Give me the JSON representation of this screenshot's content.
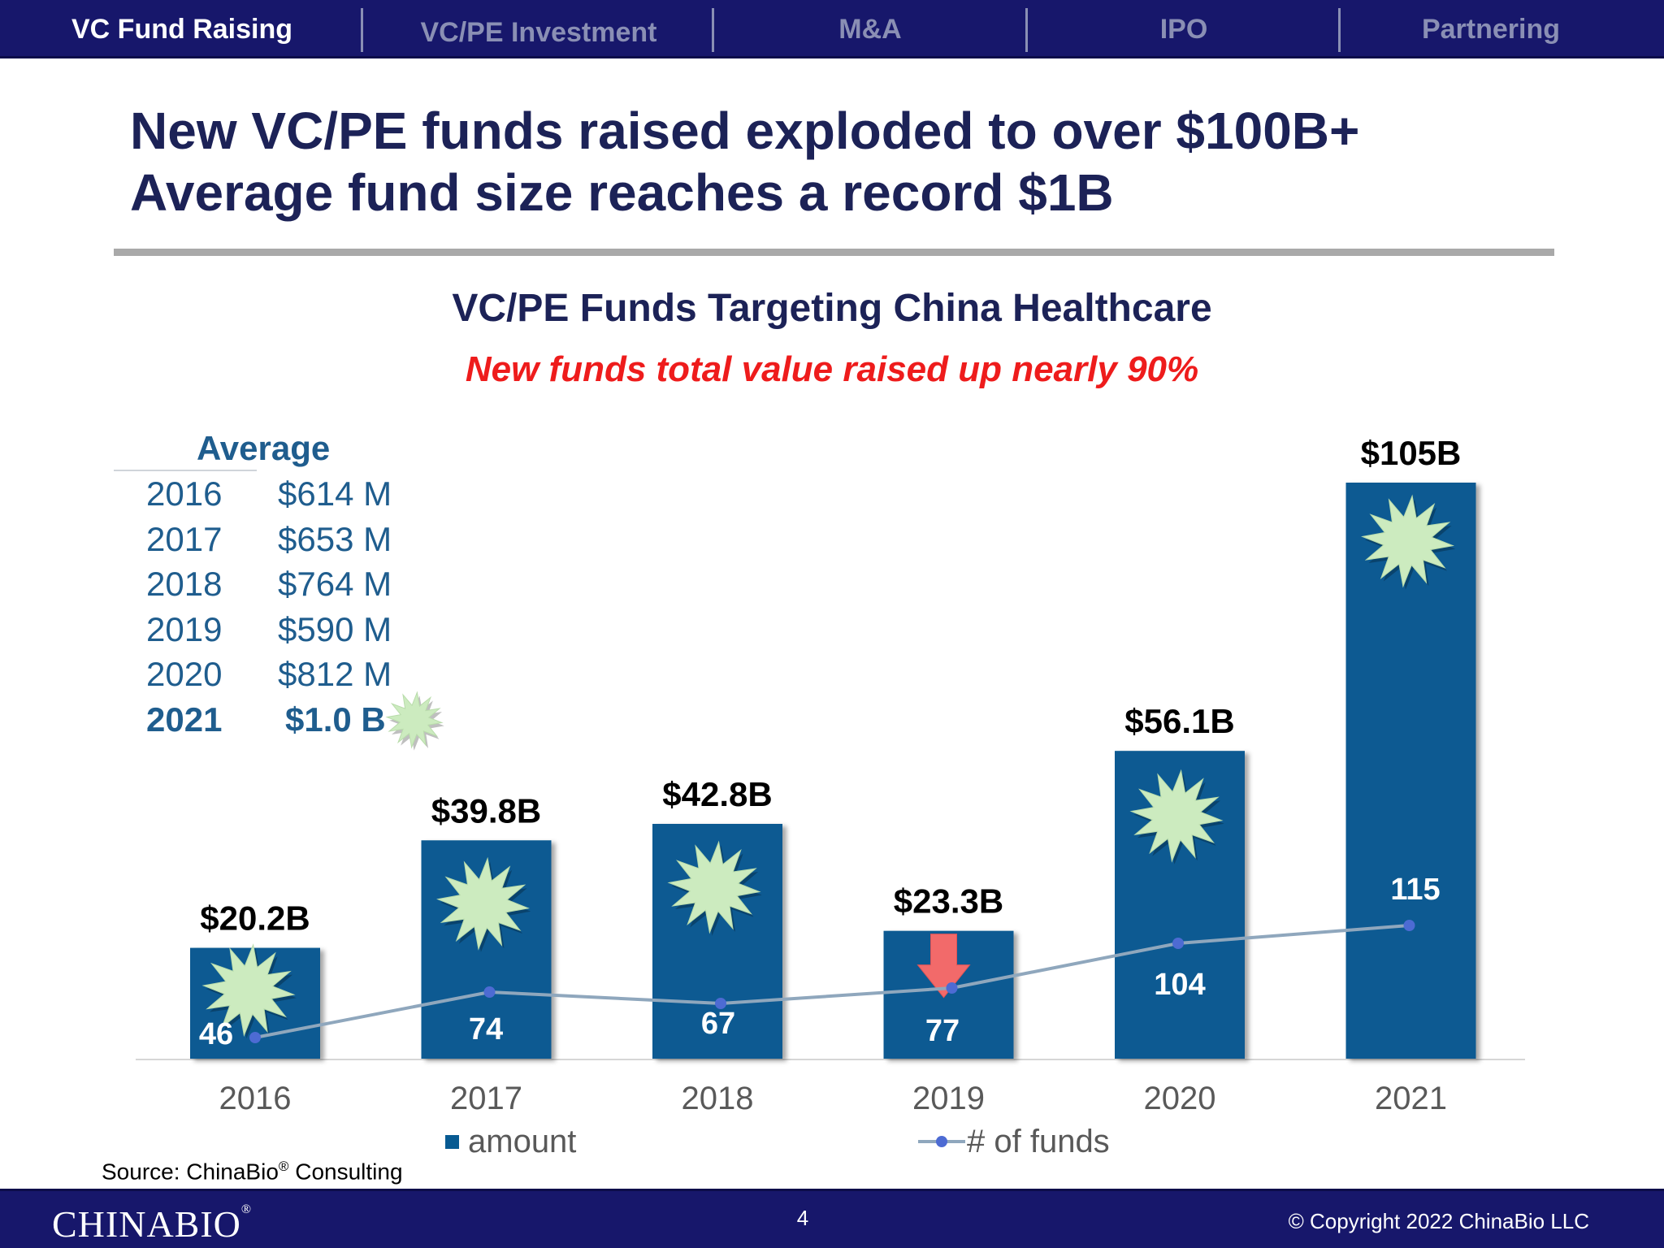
{
  "nav": {
    "tabs": [
      {
        "label": "VC Fund Raising",
        "active": true
      },
      {
        "label": "VC/PE Investment",
        "active": false
      },
      {
        "label": "M&A",
        "active": false
      },
      {
        "label": "IPO",
        "active": false
      },
      {
        "label": "Partnering",
        "active": false
      }
    ]
  },
  "headline": {
    "line1": "New VC/PE funds raised exploded to over $100B+",
    "line2": "Average fund size reaches a record $1B"
  },
  "average": {
    "heading": "Average",
    "rows": [
      {
        "year": "2016",
        "value": "$614 M"
      },
      {
        "year": "2017",
        "value": "$653 M"
      },
      {
        "year": "2018",
        "value": "$764 M"
      },
      {
        "year": "2019",
        "value": "$590 M"
      },
      {
        "year": "2020",
        "value": "$812 M"
      },
      {
        "year": "2021",
        "value": "$1.0 B"
      }
    ]
  },
  "chart_data": {
    "type": "bar",
    "title": "VC/PE Funds Targeting China Healthcare",
    "subtitle": "New funds total value raised up nearly 90%",
    "categories": [
      "2016",
      "2017",
      "2018",
      "2019",
      "2020",
      "2021"
    ],
    "series": [
      {
        "name": "amount",
        "type": "bar",
        "values": [
          20.2,
          39.8,
          42.8,
          23.3,
          56.1,
          105
        ],
        "labels": [
          "$20.2B",
          "$39.8B",
          "$42.8B",
          "$23.3B",
          "$56.1B",
          "$105B"
        ]
      },
      {
        "name": "# of funds",
        "type": "line",
        "values": [
          46,
          74,
          67,
          77,
          104,
          115
        ]
      }
    ],
    "legend_position": "bottom",
    "grid": false,
    "colors": {
      "bar": "#075a92",
      "line": "#8fa7bd",
      "marker": "#4d6bd3",
      "starburst": "#ccebbf",
      "down_arrow": "#f26a6a"
    },
    "annotations": {
      "starburst_years": [
        "2016",
        "2017",
        "2018",
        "2020",
        "2021"
      ],
      "down_arrow_year": "2019"
    }
  },
  "source": {
    "prefix": "Source: ChinaBio",
    "mark": "®",
    "suffix": " Consulting"
  },
  "footer": {
    "brand": "CHINABIO",
    "brand_mark": "®",
    "page": "4",
    "copyright": "© Copyright 2022 ChinaBio LLC"
  }
}
